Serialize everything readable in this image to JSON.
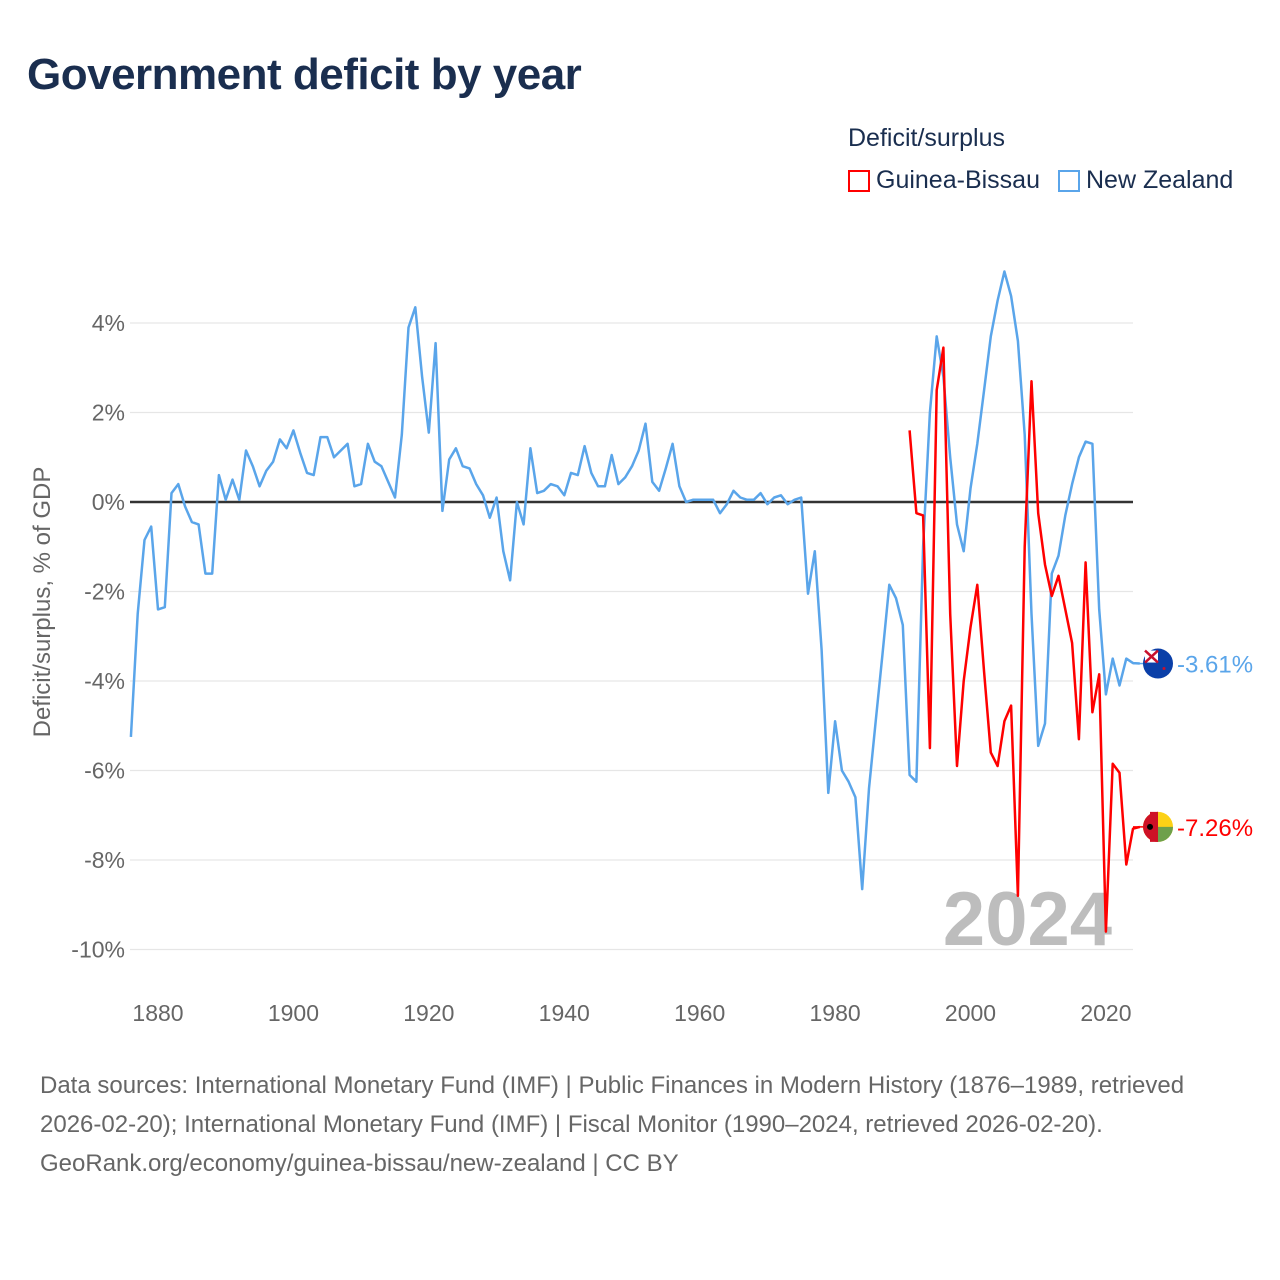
{
  "title": "Government deficit by year",
  "legend": {
    "title": "Deficit/surplus",
    "items": [
      {
        "label": "Guinea-Bissau",
        "color": "#ff0000"
      },
      {
        "label": "New Zealand",
        "color": "#5aa5ea"
      }
    ]
  },
  "year_watermark": "2024",
  "footer": {
    "sources": "Data sources: International Monetary Fund (IMF) | Public Finances in Modern History (1876–1989, retrieved 2026-02-20); International Monetary Fund (IMF) | Fiscal Monitor (1990–2024, retrieved 2026-02-20).",
    "attribution": "GeoRank.org/economy/guinea-bissau/new-zealand | CC BY"
  },
  "chart_data": {
    "type": "line",
    "title": "Government deficit by year",
    "xlabel": "",
    "ylabel": "Deficit/surplus, % of GDP",
    "xlim": [
      1876,
      2024
    ],
    "ylim": [
      -11,
      5.5
    ],
    "x_ticks": [
      1880,
      1900,
      1920,
      1940,
      1960,
      1980,
      2000,
      2020
    ],
    "y_ticks": [
      4,
      2,
      0,
      -2,
      -4,
      -6,
      -8,
      -10
    ],
    "y_tick_labels": [
      "4%",
      "2%",
      "0%",
      "-2%",
      "-4%",
      "-6%",
      "-8%",
      "-10%"
    ],
    "grid": true,
    "legend_position": "top-right",
    "series": [
      {
        "name": "New Zealand",
        "color": "#5aa5ea",
        "start_year": 1876,
        "end_label": "-3.61%",
        "values": [
          -5.25,
          -2.5,
          -0.85,
          -0.55,
          -2.4,
          -2.35,
          0.2,
          0.4,
          -0.1,
          -0.45,
          -0.5,
          -1.6,
          -1.6,
          0.6,
          0.05,
          0.5,
          0.05,
          1.15,
          0.8,
          0.35,
          0.7,
          0.9,
          1.4,
          1.2,
          1.6,
          1.1,
          0.65,
          0.6,
          1.45,
          1.45,
          1.0,
          1.15,
          1.3,
          0.35,
          0.4,
          1.3,
          0.9,
          0.8,
          0.45,
          0.1,
          1.5,
          3.9,
          4.35,
          2.8,
          1.55,
          3.55,
          -0.2,
          0.95,
          1.2,
          0.8,
          0.75,
          0.4,
          0.15,
          -0.35,
          0.1,
          -1.1,
          -1.75,
          0.0,
          -0.5,
          1.2,
          0.2,
          0.25,
          0.4,
          0.35,
          0.15,
          0.65,
          0.6,
          1.25,
          0.65,
          0.35,
          0.35,
          1.05,
          0.4,
          0.55,
          0.8,
          1.15,
          1.75,
          0.45,
          0.25,
          0.75,
          1.3,
          0.35,
          0.0,
          0.05,
          0.05,
          0.05,
          0.05,
          -0.25,
          -0.05,
          0.25,
          0.1,
          0.05,
          0.05,
          0.2,
          -0.05,
          0.1,
          0.15,
          -0.05,
          0.05,
          0.1,
          -2.05,
          -1.1,
          -3.3,
          -6.5,
          -4.9,
          -6.0,
          -6.25,
          -6.6,
          -8.65,
          -6.4,
          -4.9,
          -3.4,
          -1.85,
          -2.15,
          -2.75,
          -6.1,
          -6.25,
          -1.0,
          2.0,
          3.7,
          2.8,
          1.0,
          -0.5,
          -1.1,
          0.3,
          1.3,
          2.5,
          3.7,
          4.5,
          5.15,
          4.6,
          3.6,
          1.5,
          -2.5,
          -5.45,
          -4.95,
          -1.6,
          -1.2,
          -0.3,
          0.4,
          1.0,
          1.35,
          1.3,
          -2.4,
          -4.3,
          -3.5,
          -4.1,
          -3.5,
          -3.6,
          -3.61
        ]
      },
      {
        "name": "Guinea-Bissau",
        "color": "#ff0000",
        "start_year": 1991,
        "end_label": "-7.26%",
        "values": [
          1.6,
          -0.25,
          -0.3,
          -5.5,
          2.5,
          3.45,
          -2.5,
          -5.9,
          -4.0,
          -2.8,
          -1.85,
          -3.8,
          -5.6,
          -5.9,
          -4.9,
          -4.55,
          -8.8,
          -1.0,
          2.7,
          -0.25,
          -1.4,
          -2.1,
          -1.65,
          -2.4,
          -3.15,
          -5.3,
          -1.35,
          -4.7,
          -3.85,
          -9.6,
          -5.85,
          -6.05,
          -8.1,
          -7.3,
          -7.26
        ]
      }
    ]
  }
}
